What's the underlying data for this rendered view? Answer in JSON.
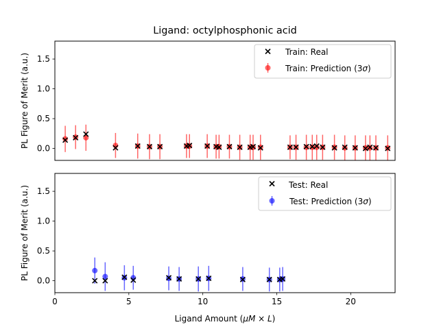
{
  "figure": {
    "title": "Ligand: octylphosphonic acid",
    "xlabel_main": "Ligand Amount (",
    "xlabel_math": "μM × L",
    "xlabel_close": ")"
  },
  "chart_data": [
    {
      "type": "scatter",
      "panel": "top",
      "title": "Ligand: octylphosphonic acid",
      "xlabel": "",
      "ylabel": "PL Figure of Merit (a.u.)",
      "xlim": [
        0,
        23
      ],
      "ylim": [
        -0.2,
        1.8
      ],
      "xticks": [],
      "yticks": [
        0.0,
        0.5,
        1.0,
        1.5
      ],
      "ytick_labels": [
        "0.0",
        "0.5",
        "1.0",
        "1.5"
      ],
      "legend_position": "top-right",
      "color": "#ff0000",
      "legend": {
        "real_label": "Train: Real",
        "pred_label_main": "Train: Prediction (3",
        "pred_label_sigma": "σ",
        "pred_label_close": ")"
      },
      "real": {
        "name": "Train: Real",
        "x": [
          0.7,
          1.4,
          2.1,
          4.1,
          5.6,
          6.4,
          7.1,
          8.9,
          9.1,
          10.3,
          10.9,
          11.1,
          11.8,
          12.5,
          13.2,
          13.4,
          13.9,
          15.9,
          16.3,
          17.0,
          17.4,
          17.7,
          18.1,
          18.9,
          19.6,
          20.3,
          21.0,
          21.3,
          21.7,
          22.5
        ],
        "y": [
          0.14,
          0.18,
          0.24,
          0.01,
          0.04,
          0.03,
          0.03,
          0.04,
          0.05,
          0.04,
          0.03,
          0.02,
          0.03,
          0.02,
          0.02,
          0.03,
          0.01,
          0.02,
          0.02,
          0.03,
          0.03,
          0.04,
          0.02,
          0.01,
          0.02,
          0.01,
          0.0,
          0.02,
          0.01,
          0.0
        ]
      },
      "prediction": {
        "name": "Train: Prediction (3σ)",
        "x": [
          0.7,
          1.4,
          2.1,
          4.1,
          5.6,
          6.4,
          7.1,
          8.9,
          9.1,
          10.3,
          10.9,
          11.1,
          11.8,
          12.5,
          13.2,
          13.4,
          13.9,
          15.9,
          16.3,
          17.0,
          17.4,
          17.7,
          18.1,
          18.9,
          19.6,
          20.3,
          21.0,
          21.3,
          21.7,
          22.5
        ],
        "y": [
          0.16,
          0.19,
          0.18,
          0.05,
          0.04,
          0.03,
          0.03,
          0.04,
          0.04,
          0.04,
          0.03,
          0.03,
          0.03,
          0.02,
          0.02,
          0.02,
          0.02,
          0.02,
          0.02,
          0.02,
          0.02,
          0.02,
          0.02,
          0.02,
          0.01,
          0.01,
          0.01,
          0.01,
          0.01,
          0.01
        ],
        "err_3sigma": [
          0.22,
          0.2,
          0.22,
          0.21,
          0.21,
          0.21,
          0.21,
          0.2,
          0.2,
          0.2,
          0.2,
          0.2,
          0.2,
          0.21,
          0.21,
          0.21,
          0.21,
          0.2,
          0.21,
          0.21,
          0.21,
          0.21,
          0.21,
          0.21,
          0.21,
          0.21,
          0.21,
          0.21,
          0.21,
          0.21
        ]
      }
    },
    {
      "type": "scatter",
      "panel": "bottom",
      "xlabel": "Ligand Amount (μM × L)",
      "ylabel": "PL Figure of Merit (a.u.)",
      "xlim": [
        0,
        23
      ],
      "ylim": [
        -0.2,
        1.8
      ],
      "xticks": [
        0,
        5,
        10,
        15,
        20
      ],
      "xtick_labels": [
        "0",
        "5",
        "10",
        "15",
        "20"
      ],
      "yticks": [
        0.0,
        0.5,
        1.0,
        1.5
      ],
      "ytick_labels": [
        "0.0",
        "0.5",
        "1.0",
        "1.5"
      ],
      "legend_position": "top-right",
      "color": "#0000ff",
      "legend": {
        "real_label": "Test: Real",
        "pred_label_main": "Test: Prediction (3",
        "pred_label_sigma": "σ",
        "pred_label_close": ")"
      },
      "real": {
        "name": "Test: Real",
        "x": [
          2.7,
          3.4,
          4.7,
          5.3,
          7.7,
          8.4,
          9.7,
          10.4,
          12.7,
          14.5,
          15.2,
          15.4
        ],
        "y": [
          0.0,
          0.0,
          0.06,
          0.01,
          0.05,
          0.03,
          0.03,
          0.04,
          0.02,
          0.02,
          0.02,
          0.03
        ]
      },
      "prediction": {
        "name": "Test: Prediction (3σ)",
        "x": [
          2.7,
          3.4,
          4.7,
          5.3,
          7.7,
          8.4,
          9.7,
          10.4,
          12.7,
          14.5,
          15.2,
          15.4
        ],
        "y": [
          0.17,
          0.07,
          0.05,
          0.05,
          0.04,
          0.03,
          0.03,
          0.04,
          0.03,
          0.02,
          0.02,
          0.03
        ],
        "err_3sigma": [
          0.22,
          0.24,
          0.21,
          0.2,
          0.2,
          0.2,
          0.21,
          0.21,
          0.2,
          0.2,
          0.2,
          0.2
        ]
      }
    }
  ]
}
